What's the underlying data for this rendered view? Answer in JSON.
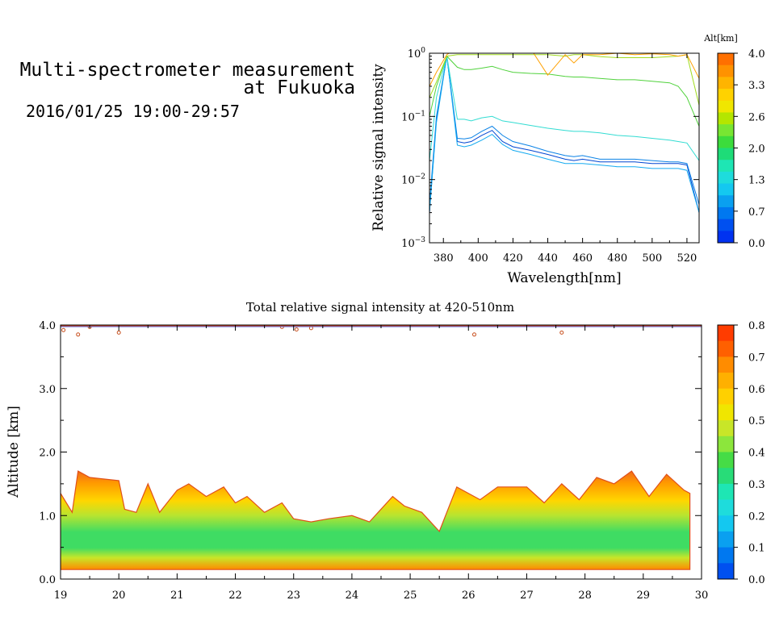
{
  "header": {
    "title_line1": "Multi-spectrometer measurement",
    "title_line2": "at Fukuoka",
    "subtitle": "2016/01/25 19:00-29:57"
  },
  "chart_data": [
    {
      "type": "line",
      "xlabel": "Wavelength[nm]",
      "ylabel": "Relative signal intensity",
      "xlim": [
        372,
        527
      ],
      "ylim": [
        0.001,
        1
      ],
      "yscale": "log",
      "x_ticks": [
        380,
        400,
        420,
        440,
        460,
        480,
        500,
        520
      ],
      "x_tick_labels": [
        "380",
        "400",
        "420",
        "440",
        "460",
        "480",
        "500",
        "520"
      ],
      "y_tick_labels": [
        {
          "v": 1,
          "b": "10",
          "e": "0"
        },
        {
          "v": 0.1,
          "b": "10",
          "e": "−1"
        },
        {
          "v": 0.01,
          "b": "10",
          "e": "−2"
        },
        {
          "v": 0.001,
          "b": "10",
          "e": "−3"
        }
      ],
      "colorbar": {
        "label": "Alt[km]",
        "tick_labels": [
          "4.0",
          "3.3",
          "2.6",
          "2.0",
          "1.3",
          "0.7",
          "0.0"
        ],
        "colors": [
          "#ff7000",
          "#ff9200",
          "#ffb400",
          "#ffd200",
          "#f0e600",
          "#b4e600",
          "#78e632",
          "#3cdc3c",
          "#1edc78",
          "#1ee6b4",
          "#1edcdc",
          "#14c8f0",
          "#0aa0f0",
          "#0078f0",
          "#0050f0",
          "#0032f0"
        ]
      },
      "wavelengths": [
        372,
        376,
        382,
        388,
        392,
        396,
        402,
        408,
        414,
        420,
        430,
        440,
        450,
        455,
        460,
        470,
        480,
        490,
        500,
        510,
        515,
        520,
        527
      ],
      "series": [
        {
          "color": "#0046d2",
          "values": [
            0.003,
            0.09,
            0.9,
            0.04,
            0.038,
            0.04,
            0.05,
            0.06,
            0.04,
            0.033,
            0.029,
            0.025,
            0.021,
            0.02,
            0.021,
            0.019,
            0.019,
            0.019,
            0.018,
            0.018,
            0.018,
            0.017,
            0.003
          ]
        },
        {
          "color": "#0a82e6",
          "values": [
            0.004,
            0.1,
            0.9,
            0.045,
            0.044,
            0.046,
            0.058,
            0.07,
            0.05,
            0.04,
            0.034,
            0.028,
            0.024,
            0.023,
            0.024,
            0.021,
            0.021,
            0.021,
            0.02,
            0.019,
            0.019,
            0.018,
            0.004
          ]
        },
        {
          "color": "#14aaf0",
          "values": [
            0.003,
            0.08,
            0.9,
            0.035,
            0.033,
            0.035,
            0.042,
            0.052,
            0.036,
            0.029,
            0.025,
            0.021,
            0.018,
            0.018,
            0.018,
            0.017,
            0.016,
            0.016,
            0.015,
            0.015,
            0.015,
            0.014,
            0.003
          ]
        },
        {
          "color": "#32dcd2",
          "values": [
            0.02,
            0.2,
            0.9,
            0.09,
            0.09,
            0.085,
            0.095,
            0.1,
            0.085,
            0.08,
            0.072,
            0.065,
            0.06,
            0.058,
            0.058,
            0.055,
            0.05,
            0.048,
            0.045,
            0.042,
            0.04,
            0.038,
            0.02
          ]
        },
        {
          "color": "#50d23c",
          "values": [
            0.1,
            0.3,
            0.9,
            0.6,
            0.55,
            0.55,
            0.58,
            0.62,
            0.55,
            0.5,
            0.48,
            0.47,
            0.43,
            0.42,
            0.42,
            0.4,
            0.38,
            0.38,
            0.36,
            0.34,
            0.3,
            0.2,
            0.07
          ]
        },
        {
          "color": "#a0dc1e",
          "values": [
            0.2,
            0.35,
            0.9,
            0.95,
            0.95,
            0.95,
            0.95,
            0.95,
            0.95,
            0.95,
            0.95,
            0.95,
            0.9,
            0.95,
            0.95,
            0.88,
            0.85,
            0.85,
            0.85,
            0.88,
            0.9,
            0.95,
            0.15
          ]
        },
        {
          "color": "#ffa000",
          "values": [
            0.3,
            0.5,
            0.95,
            1.2,
            1.2,
            1.2,
            1.2,
            1.2,
            1.2,
            1.2,
            1.2,
            0.45,
            0.95,
            0.7,
            0.95,
            0.95,
            1,
            0.95,
            0.98,
            0.95,
            0.9,
            0.95,
            0.4
          ]
        }
      ]
    },
    {
      "type": "heatmap",
      "title": "Total relative signal intensity at 420-510nm",
      "xlabel": "",
      "ylabel": "Altitude [km]",
      "xlim": [
        19,
        30
      ],
      "ylim": [
        0,
        4
      ],
      "x_tick_labels": [
        "19",
        "20",
        "21",
        "22",
        "23",
        "24",
        "25",
        "26",
        "27",
        "28",
        "29",
        "30"
      ],
      "y_tick_labels": [
        "0.0",
        "1.0",
        "2.0",
        "3.0",
        "4.0"
      ],
      "colorbar": {
        "tick_labels": [
          "0.8",
          "0.7",
          "0.6",
          "0.5",
          "0.4",
          "0.3",
          "0.2",
          "0.1",
          "0.0"
        ],
        "colors": [
          "#ff3c00",
          "#ff6000",
          "#ff8c00",
          "#ffb000",
          "#ffd000",
          "#f0e600",
          "#c8e628",
          "#8ce63c",
          "#46dc46",
          "#28dc78",
          "#1ee6b4",
          "#1edcdc",
          "#14c8f0",
          "#0aa0f0",
          "#0078f0",
          "#0050f0"
        ]
      },
      "data_bottom_km": 0.15,
      "cloud_top_km": [
        {
          "x": 19.0,
          "h": 1.35
        },
        {
          "x": 19.2,
          "h": 1.05
        },
        {
          "x": 19.3,
          "h": 1.7
        },
        {
          "x": 19.5,
          "h": 1.6
        },
        {
          "x": 20.0,
          "h": 1.55
        },
        {
          "x": 20.1,
          "h": 1.1
        },
        {
          "x": 20.3,
          "h": 1.05
        },
        {
          "x": 20.5,
          "h": 1.5
        },
        {
          "x": 20.7,
          "h": 1.05
        },
        {
          "x": 21.0,
          "h": 1.4
        },
        {
          "x": 21.2,
          "h": 1.5
        },
        {
          "x": 21.5,
          "h": 1.3
        },
        {
          "x": 21.8,
          "h": 1.45
        },
        {
          "x": 22.0,
          "h": 1.2
        },
        {
          "x": 22.2,
          "h": 1.3
        },
        {
          "x": 22.5,
          "h": 1.05
        },
        {
          "x": 22.8,
          "h": 1.2
        },
        {
          "x": 23.0,
          "h": 0.95
        },
        {
          "x": 23.3,
          "h": 0.9
        },
        {
          "x": 23.6,
          "h": 0.95
        },
        {
          "x": 24.0,
          "h": 1.0
        },
        {
          "x": 24.3,
          "h": 0.9
        },
        {
          "x": 24.7,
          "h": 1.3
        },
        {
          "x": 24.9,
          "h": 1.15
        },
        {
          "x": 25.2,
          "h": 1.05
        },
        {
          "x": 25.5,
          "h": 0.75
        },
        {
          "x": 25.8,
          "h": 1.45
        },
        {
          "x": 26.2,
          "h": 1.25
        },
        {
          "x": 26.5,
          "h": 1.45
        },
        {
          "x": 27.0,
          "h": 1.45
        },
        {
          "x": 27.3,
          "h": 1.2
        },
        {
          "x": 27.6,
          "h": 1.5
        },
        {
          "x": 27.9,
          "h": 1.25
        },
        {
          "x": 28.2,
          "h": 1.6
        },
        {
          "x": 28.5,
          "h": 1.5
        },
        {
          "x": 28.8,
          "h": 1.7
        },
        {
          "x": 29.1,
          "h": 1.3
        },
        {
          "x": 29.4,
          "h": 1.65
        },
        {
          "x": 29.7,
          "h": 1.4
        },
        {
          "x": 29.8,
          "h": 1.35
        }
      ],
      "data_end_x": 29.8,
      "top_contours": [
        {
          "x": 19.05,
          "y": 3.92
        },
        {
          "x": 19.3,
          "y": 3.85
        },
        {
          "x": 19.5,
          "y": 3.97
        },
        {
          "x": 20.0,
          "y": 3.88
        },
        {
          "x": 22.8,
          "y": 3.97
        },
        {
          "x": 23.05,
          "y": 3.93
        },
        {
          "x": 23.3,
          "y": 3.95
        },
        {
          "x": 26.1,
          "y": 3.85
        },
        {
          "x": 27.6,
          "y": 3.88
        }
      ]
    }
  ]
}
